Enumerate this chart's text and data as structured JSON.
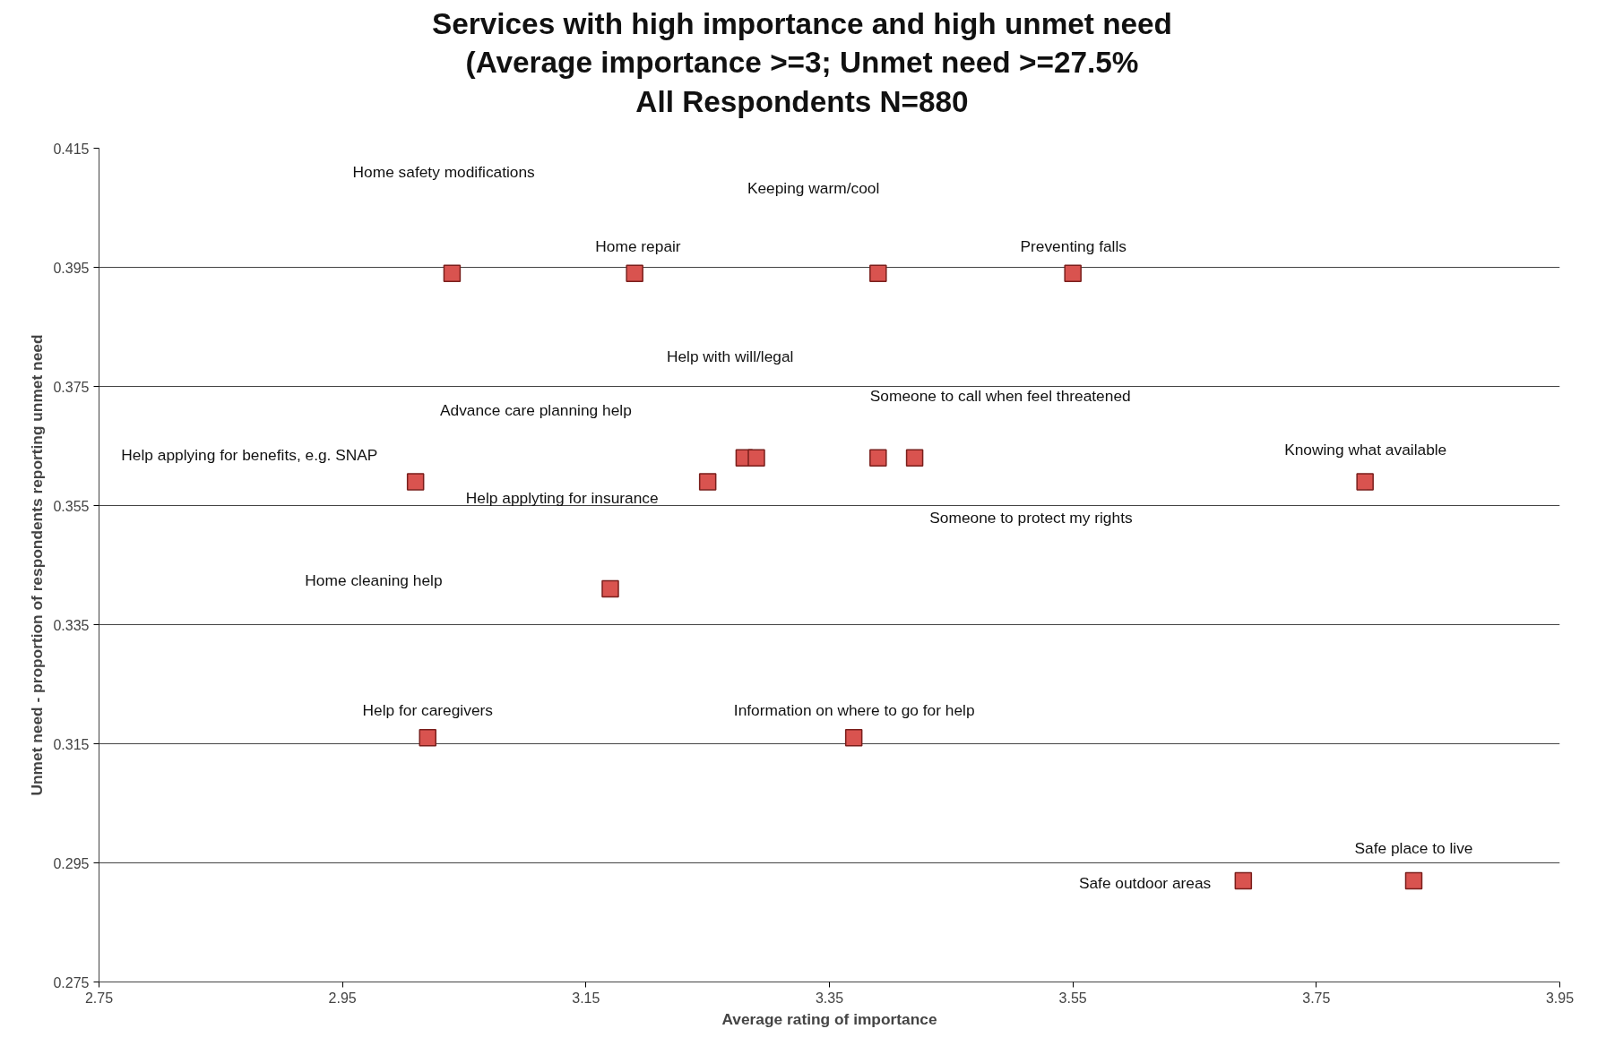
{
  "chart_data": {
    "type": "scatter",
    "title": "Services with high importance and high unmet need\n(Average importance >=3; Unmet need >=27.5%\nAll Respondents N=880",
    "xlabel": "Average rating of importance",
    "ylabel": "Unmet need - proportion of respondents reporting unmet need",
    "x": [
      3.04,
      3.19,
      3.39,
      3.55,
      3.01,
      3.25,
      3.28,
      3.29,
      3.39,
      3.42,
      3.79,
      3.17,
      3.02,
      3.37,
      3.69,
      3.83
    ],
    "series": [
      {
        "color": "#d9534f",
        "values": [
          0.394,
          0.394,
          0.394,
          0.394,
          0.359,
          0.359,
          0.363,
          0.363,
          0.363,
          0.363,
          0.359,
          0.341,
          0.316,
          0.316,
          0.292,
          0.292
        ]
      }
    ],
    "marker": "square",
    "grid": "y",
    "xlim": [
      2.75,
      3.95
    ],
    "xticks": [
      2.75,
      2.95,
      3.15,
      3.35,
      3.55,
      3.75,
      3.95
    ],
    "ylim": [
      0.275,
      0.415
    ],
    "yticks": [
      0.275,
      0.295,
      0.315,
      0.335,
      0.355,
      0.375,
      0.395,
      0.415
    ],
    "annotations": [
      "Home safety modifications",
      "Home repair",
      "Keeping warm/cool",
      "Preventing falls",
      "Help with will/legal",
      "Advance care planning help",
      "Someone to call when feel threatened",
      "Help applying for benefits, e.g. SNAP",
      "Knowing what available",
      "Help applyting for insurance",
      "Someone to protect my rights",
      "Home cleaning help",
      "Help for caregivers",
      "Information on where to go for help",
      "Safe outdoor areas",
      "Safe place to live"
    ]
  }
}
